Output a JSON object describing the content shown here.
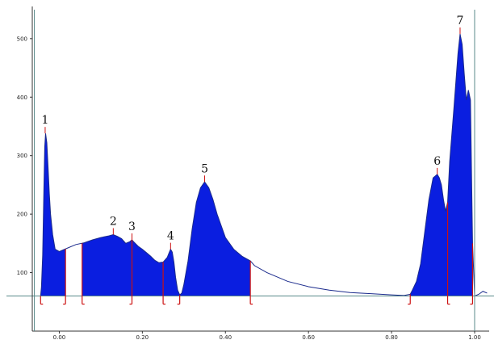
{
  "chart_data": {
    "type": "area",
    "title": "",
    "xlabel": "",
    "ylabel": "",
    "x_ticks": [
      "0.00",
      "0.20",
      "0.40",
      "0.60",
      "0.80",
      "1.00"
    ],
    "y_ticks": [
      "100",
      "200",
      "300",
      "400",
      "500"
    ],
    "x_tick_values": [
      0.0,
      0.2,
      0.4,
      0.6,
      0.8,
      1.0
    ],
    "y_tick_values": [
      100,
      200,
      300,
      400,
      500
    ],
    "xlim": [
      -0.065,
      1.035
    ],
    "ylim": [
      0,
      555
    ],
    "baseline": 60,
    "grid": false,
    "colors": {
      "fill": "#0a1ee0",
      "outline": "#1a2a8c",
      "baseline": "#5a8a8a",
      "marker": "#cc1111",
      "axis": "#333333"
    },
    "profile": [
      [
        -0.06,
        60
      ],
      [
        -0.045,
        60
      ],
      [
        -0.043,
        75
      ],
      [
        -0.04,
        130
      ],
      [
        -0.037,
        245
      ],
      [
        -0.035,
        315
      ],
      [
        -0.033,
        338
      ],
      [
        -0.03,
        322
      ],
      [
        -0.027,
        280
      ],
      [
        -0.024,
        235
      ],
      [
        -0.021,
        200
      ],
      [
        -0.016,
        165
      ],
      [
        -0.01,
        140
      ],
      [
        0.0,
        136
      ],
      [
        0.02,
        142
      ],
      [
        0.04,
        148
      ],
      [
        0.06,
        151
      ],
      [
        0.08,
        156
      ],
      [
        0.1,
        160
      ],
      [
        0.12,
        163
      ],
      [
        0.13,
        165
      ],
      [
        0.14,
        162
      ],
      [
        0.15,
        158
      ],
      [
        0.16,
        150
      ],
      [
        0.17,
        153
      ],
      [
        0.175,
        156
      ],
      [
        0.18,
        152
      ],
      [
        0.19,
        145
      ],
      [
        0.2,
        140
      ],
      [
        0.21,
        134
      ],
      [
        0.22,
        128
      ],
      [
        0.23,
        121
      ],
      [
        0.24,
        117
      ],
      [
        0.25,
        118
      ],
      [
        0.26,
        126
      ],
      [
        0.265,
        135
      ],
      [
        0.268,
        140
      ],
      [
        0.272,
        135
      ],
      [
        0.276,
        118
      ],
      [
        0.28,
        92
      ],
      [
        0.285,
        70
      ],
      [
        0.29,
        62
      ],
      [
        0.295,
        65
      ],
      [
        0.3,
        80
      ],
      [
        0.31,
        120
      ],
      [
        0.32,
        175
      ],
      [
        0.33,
        220
      ],
      [
        0.34,
        245
      ],
      [
        0.35,
        255
      ],
      [
        0.36,
        245
      ],
      [
        0.37,
        225
      ],
      [
        0.38,
        200
      ],
      [
        0.39,
        180
      ],
      [
        0.4,
        160
      ],
      [
        0.42,
        140
      ],
      [
        0.44,
        128
      ],
      [
        0.46,
        120
      ],
      [
        0.47,
        112
      ],
      [
        0.5,
        100
      ],
      [
        0.55,
        85
      ],
      [
        0.6,
        76
      ],
      [
        0.65,
        70
      ],
      [
        0.7,
        66
      ],
      [
        0.75,
        64
      ],
      [
        0.8,
        62
      ],
      [
        0.83,
        61
      ],
      [
        0.845,
        63
      ],
      [
        0.85,
        70
      ],
      [
        0.86,
        85
      ],
      [
        0.87,
        115
      ],
      [
        0.88,
        170
      ],
      [
        0.89,
        225
      ],
      [
        0.9,
        262
      ],
      [
        0.91,
        268
      ],
      [
        0.915,
        262
      ],
      [
        0.92,
        250
      ],
      [
        0.925,
        225
      ],
      [
        0.93,
        205
      ],
      [
        0.935,
        220
      ],
      [
        0.94,
        290
      ],
      [
        0.95,
        380
      ],
      [
        0.96,
        475
      ],
      [
        0.965,
        508
      ],
      [
        0.97,
        490
      ],
      [
        0.975,
        440
      ],
      [
        0.98,
        395
      ],
      [
        0.985,
        412
      ],
      [
        0.99,
        395
      ],
      [
        0.995,
        150
      ],
      [
        1.0,
        60
      ],
      [
        1.01,
        63
      ],
      [
        1.02,
        68
      ],
      [
        1.03,
        65
      ]
    ],
    "filled_segments": [
      [
        -0.045,
        0.015
      ],
      [
        0.055,
        0.175
      ],
      [
        0.175,
        0.25
      ],
      [
        0.25,
        0.29
      ],
      [
        0.29,
        0.46
      ],
      [
        0.845,
        0.935
      ],
      [
        0.935,
        0.995
      ]
    ],
    "boundary_markers": [
      -0.045,
      0.015,
      0.055,
      0.175,
      0.25,
      0.29,
      0.46,
      0.845,
      0.935,
      0.995
    ],
    "peaks": [
      {
        "label": "1",
        "x": -0.034,
        "y": 338
      },
      {
        "label": "2",
        "x": 0.13,
        "y": 165
      },
      {
        "label": "3",
        "x": 0.175,
        "y": 156
      },
      {
        "label": "4",
        "x": 0.268,
        "y": 140
      },
      {
        "label": "5",
        "x": 0.35,
        "y": 255
      },
      {
        "label": "6",
        "x": 0.91,
        "y": 268
      },
      {
        "label": "7",
        "x": 0.965,
        "y": 508
      }
    ]
  }
}
